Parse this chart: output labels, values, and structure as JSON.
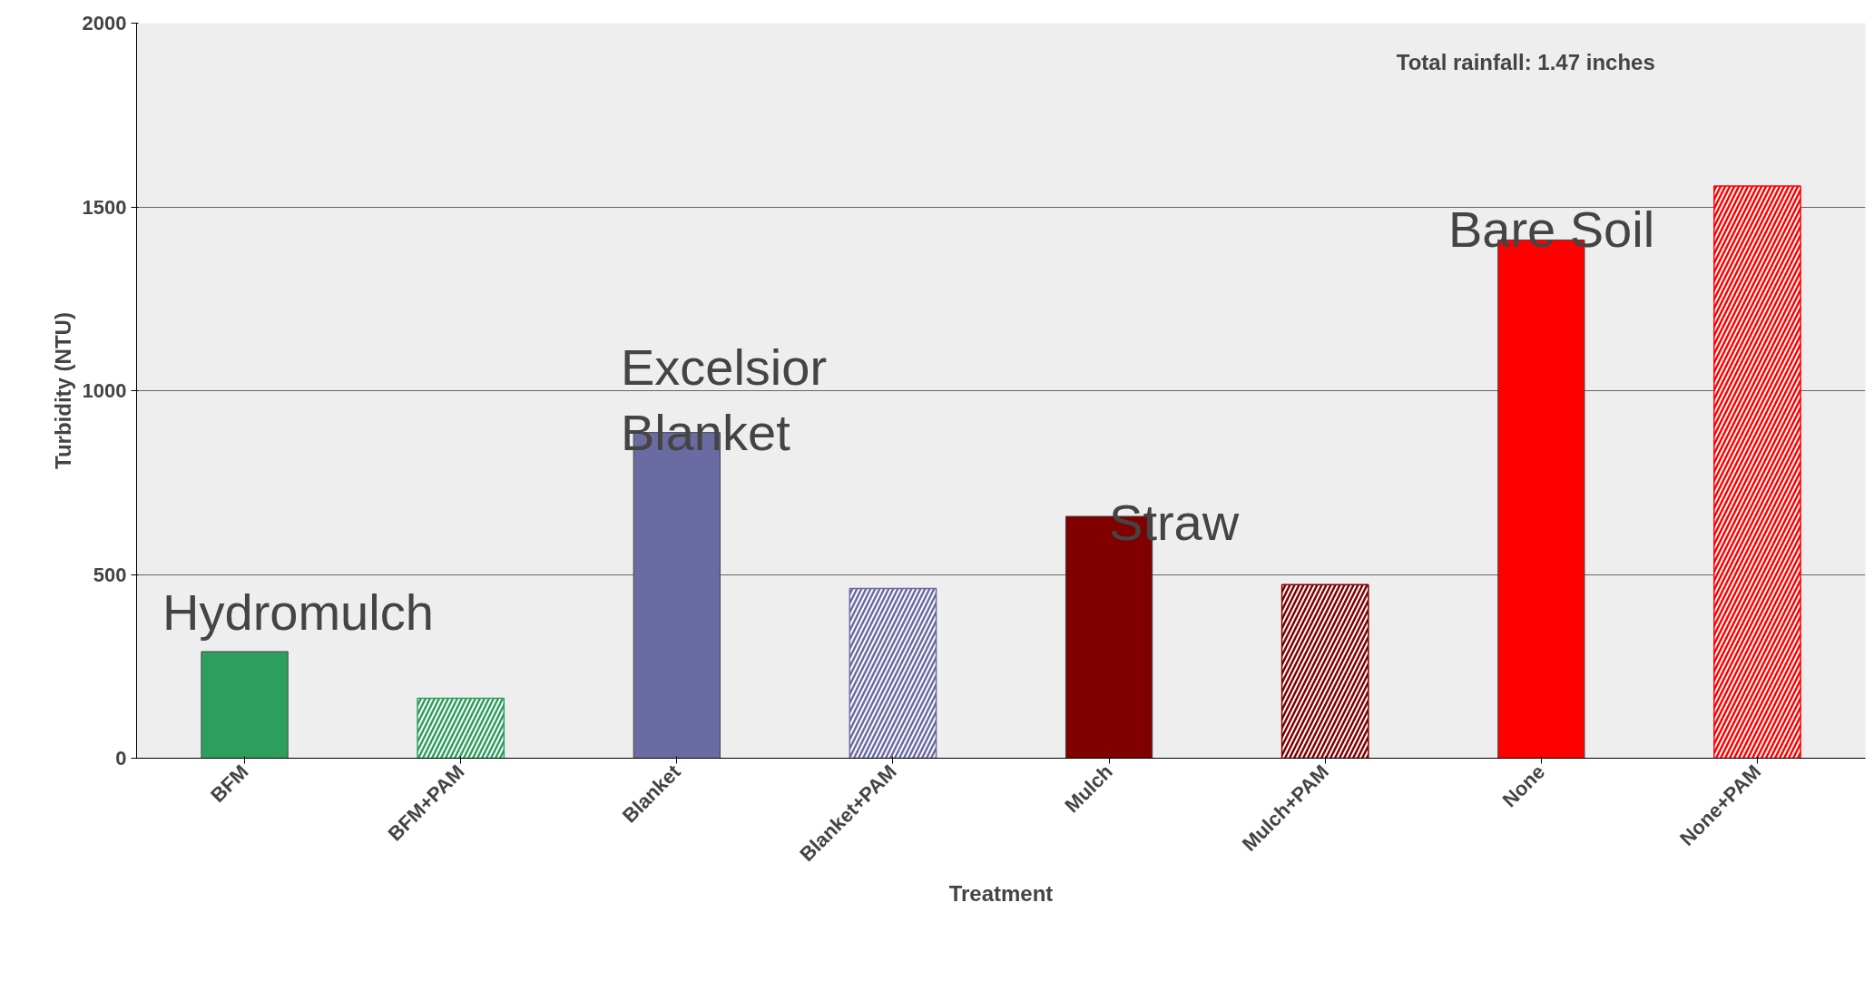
{
  "chart_data": {
    "type": "bar",
    "xlabel": "Treatment",
    "ylabel": "Turbidity (NTU)",
    "categories": [
      "BFM",
      "BFM+PAM",
      "Blanket",
      "Blanket+PAM",
      "Mulch",
      "Mulch+PAM",
      "None",
      "None+PAM"
    ],
    "series": [
      {
        "colors": [
          "#2e9e5e",
          "#2e9e5e",
          "#6b6ba3",
          "#6b6ba3",
          "#800000",
          "#800000",
          "#ff0000",
          "#ff0000"
        ],
        "values": [
          290,
          null,
          886,
          null,
          658,
          null,
          1410,
          null
        ]
      },
      {
        "colors": [
          "#2e9e5e",
          "#2e9e5e",
          "#6b6ba3",
          "#6b6ba3",
          "#800000",
          "#800000",
          "#ff0000",
          "#ff0000"
        ],
        "values": [
          null,
          163,
          null,
          462,
          null,
          472,
          null,
          1557
        ]
      }
    ],
    "ylim": [
      0,
      2000
    ],
    "yticks": [
      0,
      500,
      1000,
      1500,
      2000
    ],
    "grid": "y",
    "annotations": [
      "Hydromulch",
      "Excelsior\nBlanket",
      "Straw",
      "Bare Soil",
      "Total rainfall: 1.47 inches"
    ]
  }
}
